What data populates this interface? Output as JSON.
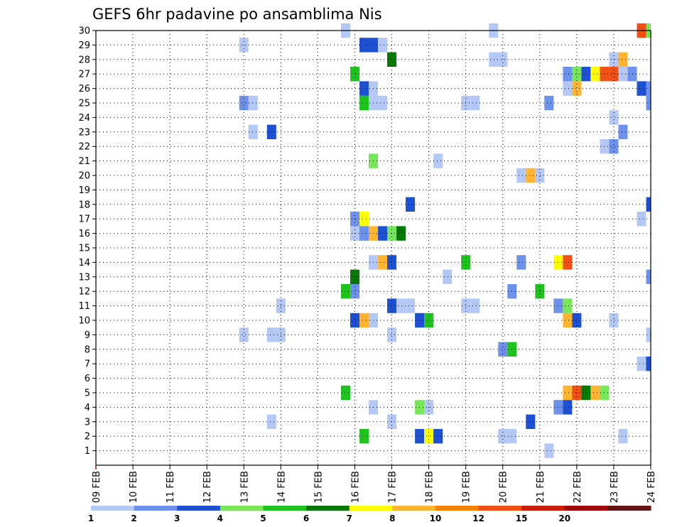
{
  "chart_data": {
    "type": "heatmap",
    "title": "GEFS 6hr padavine po ansamblima Nis",
    "xlabel": "",
    "ylabel": "",
    "x_ticks": [
      "09 FEB",
      "10 FEB",
      "11 FEB",
      "12 FEB",
      "13 FEB",
      "14 FEB",
      "15 FEB",
      "16 FEB",
      "17 FEB",
      "18 FEB",
      "19 FEB",
      "20 FEB",
      "21 FEB",
      "22 FEB",
      "23 FEB",
      "24 FEB"
    ],
    "y_ticks": [
      1,
      2,
      3,
      4,
      5,
      6,
      7,
      8,
      9,
      10,
      11,
      12,
      13,
      14,
      15,
      16,
      17,
      18,
      19,
      20,
      21,
      22,
      23,
      24,
      25,
      26,
      27,
      28,
      29,
      30
    ],
    "x_range": [
      0,
      15
    ],
    "y_range": [
      0,
      30
    ],
    "grid": true,
    "color_levels": [
      {
        "label": "1",
        "color": "#b4c8f5"
      },
      {
        "label": "2",
        "color": "#6e91eb"
      },
      {
        "label": "3",
        "color": "#1e50d2"
      },
      {
        "label": "4",
        "color": "#78e65a"
      },
      {
        "label": "5",
        "color": "#1ec31e"
      },
      {
        "label": "6",
        "color": "#057805"
      },
      {
        "label": "7",
        "color": "#ffff00"
      },
      {
        "label": "8",
        "color": "#ffb432"
      },
      {
        "label": "10",
        "color": "#ff8200"
      },
      {
        "label": "12",
        "color": "#f05014"
      },
      {
        "label": "15",
        "color": "#c81e0a"
      },
      {
        "label": "20",
        "color": "#a00a0a"
      },
      {
        "label": "",
        "color": "#641414"
      }
    ],
    "cells": [
      {
        "m": 30,
        "x": 6.75,
        "v": 1
      },
      {
        "m": 30,
        "x": 10.75,
        "v": 1
      },
      {
        "m": 30,
        "x": 14.75,
        "v": 10
      },
      {
        "m": 30,
        "x": 15.0,
        "v": 4
      },
      {
        "m": 29,
        "x": 4.0,
        "v": 1
      },
      {
        "m": 29,
        "x": 7.25,
        "v": 3
      },
      {
        "m": 29,
        "x": 7.5,
        "v": 3
      },
      {
        "m": 29,
        "x": 7.75,
        "v": 1
      },
      {
        "m": 28,
        "x": 8.0,
        "v": 6
      },
      {
        "m": 28,
        "x": 10.75,
        "v": 1
      },
      {
        "m": 28,
        "x": 11.0,
        "v": 1
      },
      {
        "m": 28,
        "x": 14.0,
        "v": 1
      },
      {
        "m": 28,
        "x": 14.25,
        "v": 8
      },
      {
        "m": 27,
        "x": 7.0,
        "v": 5
      },
      {
        "m": 27,
        "x": 12.75,
        "v": 2
      },
      {
        "m": 27,
        "x": 13.0,
        "v": 4
      },
      {
        "m": 27,
        "x": 13.25,
        "v": 3
      },
      {
        "m": 27,
        "x": 13.5,
        "v": 7
      },
      {
        "m": 27,
        "x": 13.75,
        "v": 10
      },
      {
        "m": 27,
        "x": 14.0,
        "v": 10
      },
      {
        "m": 27,
        "x": 14.25,
        "v": 1
      },
      {
        "m": 27,
        "x": 14.5,
        "v": 2
      },
      {
        "m": 26,
        "x": 7.25,
        "v": 3
      },
      {
        "m": 26,
        "x": 7.5,
        "v": 1
      },
      {
        "m": 26,
        "x": 12.75,
        "v": 1
      },
      {
        "m": 26,
        "x": 13.0,
        "v": 8
      },
      {
        "m": 26,
        "x": 14.75,
        "v": 3
      },
      {
        "m": 26,
        "x": 15.0,
        "v": 2
      },
      {
        "m": 25,
        "x": 4.0,
        "v": 2
      },
      {
        "m": 25,
        "x": 4.25,
        "v": 1
      },
      {
        "m": 25,
        "x": 7.25,
        "v": 5
      },
      {
        "m": 25,
        "x": 7.5,
        "v": 1
      },
      {
        "m": 25,
        "x": 7.75,
        "v": 1
      },
      {
        "m": 25,
        "x": 10.0,
        "v": 1
      },
      {
        "m": 25,
        "x": 10.25,
        "v": 1
      },
      {
        "m": 25,
        "x": 12.25,
        "v": 2
      },
      {
        "m": 25,
        "x": 15.0,
        "v": 2
      },
      {
        "m": 24,
        "x": 14.0,
        "v": 1
      },
      {
        "m": 23,
        "x": 4.25,
        "v": 1
      },
      {
        "m": 23,
        "x": 4.75,
        "v": 3
      },
      {
        "m": 23,
        "x": 14.25,
        "v": 2
      },
      {
        "m": 22,
        "x": 13.75,
        "v": 1
      },
      {
        "m": 22,
        "x": 14.0,
        "v": 2
      },
      {
        "m": 21,
        "x": 7.5,
        "v": 4
      },
      {
        "m": 21,
        "x": 9.25,
        "v": 1
      },
      {
        "m": 20,
        "x": 11.5,
        "v": 1
      },
      {
        "m": 20,
        "x": 11.75,
        "v": 8
      },
      {
        "m": 20,
        "x": 12.0,
        "v": 1
      },
      {
        "m": 18,
        "x": 8.5,
        "v": 3
      },
      {
        "m": 18,
        "x": 15.0,
        "v": 3
      },
      {
        "m": 17,
        "x": 7.0,
        "v": 2
      },
      {
        "m": 17,
        "x": 7.25,
        "v": 7
      },
      {
        "m": 17,
        "x": 14.75,
        "v": 1
      },
      {
        "m": 16,
        "x": 7.0,
        "v": 1
      },
      {
        "m": 16,
        "x": 7.25,
        "v": 2
      },
      {
        "m": 16,
        "x": 7.5,
        "v": 8
      },
      {
        "m": 16,
        "x": 7.75,
        "v": 3
      },
      {
        "m": 16,
        "x": 8.0,
        "v": 4
      },
      {
        "m": 16,
        "x": 8.25,
        "v": 6
      },
      {
        "m": 14,
        "x": 7.5,
        "v": 1
      },
      {
        "m": 14,
        "x": 7.75,
        "v": 8
      },
      {
        "m": 14,
        "x": 8.0,
        "v": 3
      },
      {
        "m": 14,
        "x": 10.0,
        "v": 5
      },
      {
        "m": 14,
        "x": 11.5,
        "v": 2
      },
      {
        "m": 14,
        "x": 12.5,
        "v": 7
      },
      {
        "m": 14,
        "x": 12.75,
        "v": 10
      },
      {
        "m": 13,
        "x": 7.0,
        "v": 6
      },
      {
        "m": 13,
        "x": 9.5,
        "v": 1
      },
      {
        "m": 13,
        "x": 15.0,
        "v": 2
      },
      {
        "m": 12,
        "x": 6.75,
        "v": 5
      },
      {
        "m": 12,
        "x": 7.0,
        "v": 2
      },
      {
        "m": 12,
        "x": 11.25,
        "v": 2
      },
      {
        "m": 12,
        "x": 12.0,
        "v": 5
      },
      {
        "m": 11,
        "x": 5.0,
        "v": 1
      },
      {
        "m": 11,
        "x": 8.0,
        "v": 3
      },
      {
        "m": 11,
        "x": 8.25,
        "v": 1
      },
      {
        "m": 11,
        "x": 8.5,
        "v": 1
      },
      {
        "m": 11,
        "x": 10.0,
        "v": 1
      },
      {
        "m": 11,
        "x": 10.25,
        "v": 1
      },
      {
        "m": 11,
        "x": 12.5,
        "v": 2
      },
      {
        "m": 11,
        "x": 12.75,
        "v": 4
      },
      {
        "m": 10,
        "x": 7.0,
        "v": 3
      },
      {
        "m": 10,
        "x": 7.25,
        "v": 8
      },
      {
        "m": 10,
        "x": 7.5,
        "v": 1
      },
      {
        "m": 10,
        "x": 8.75,
        "v": 3
      },
      {
        "m": 10,
        "x": 9.0,
        "v": 5
      },
      {
        "m": 10,
        "x": 12.75,
        "v": 8
      },
      {
        "m": 10,
        "x": 13.0,
        "v": 3
      },
      {
        "m": 10,
        "x": 14.0,
        "v": 1
      },
      {
        "m": 9,
        "x": 4.0,
        "v": 1
      },
      {
        "m": 9,
        "x": 4.75,
        "v": 1
      },
      {
        "m": 9,
        "x": 5.0,
        "v": 1
      },
      {
        "m": 9,
        "x": 8.0,
        "v": 1
      },
      {
        "m": 9,
        "x": 15.0,
        "v": 1
      },
      {
        "m": 8,
        "x": 11.0,
        "v": 2
      },
      {
        "m": 8,
        "x": 11.25,
        "v": 5
      },
      {
        "m": 7,
        "x": 14.75,
        "v": 1
      },
      {
        "m": 7,
        "x": 15.0,
        "v": 3
      },
      {
        "m": 5,
        "x": 6.75,
        "v": 5
      },
      {
        "m": 5,
        "x": 12.75,
        "v": 8
      },
      {
        "m": 5,
        "x": 13.0,
        "v": 10
      },
      {
        "m": 5,
        "x": 13.25,
        "v": 6
      },
      {
        "m": 5,
        "x": 13.5,
        "v": 8
      },
      {
        "m": 5,
        "x": 13.75,
        "v": 4
      },
      {
        "m": 4,
        "x": 7.5,
        "v": 1
      },
      {
        "m": 4,
        "x": 8.75,
        "v": 4
      },
      {
        "m": 4,
        "x": 9.0,
        "v": 1
      },
      {
        "m": 4,
        "x": 12.5,
        "v": 2
      },
      {
        "m": 4,
        "x": 12.75,
        "v": 3
      },
      {
        "m": 3,
        "x": 4.75,
        "v": 1
      },
      {
        "m": 3,
        "x": 8.0,
        "v": 1
      },
      {
        "m": 3,
        "x": 11.75,
        "v": 3
      },
      {
        "m": 2,
        "x": 7.25,
        "v": 5
      },
      {
        "m": 2,
        "x": 8.75,
        "v": 3
      },
      {
        "m": 2,
        "x": 9.0,
        "v": 7
      },
      {
        "m": 2,
        "x": 9.25,
        "v": 3
      },
      {
        "m": 2,
        "x": 11.0,
        "v": 1
      },
      {
        "m": 2,
        "x": 11.25,
        "v": 1
      },
      {
        "m": 2,
        "x": 14.25,
        "v": 1
      },
      {
        "m": 1,
        "x": 12.25,
        "v": 1
      }
    ]
  }
}
